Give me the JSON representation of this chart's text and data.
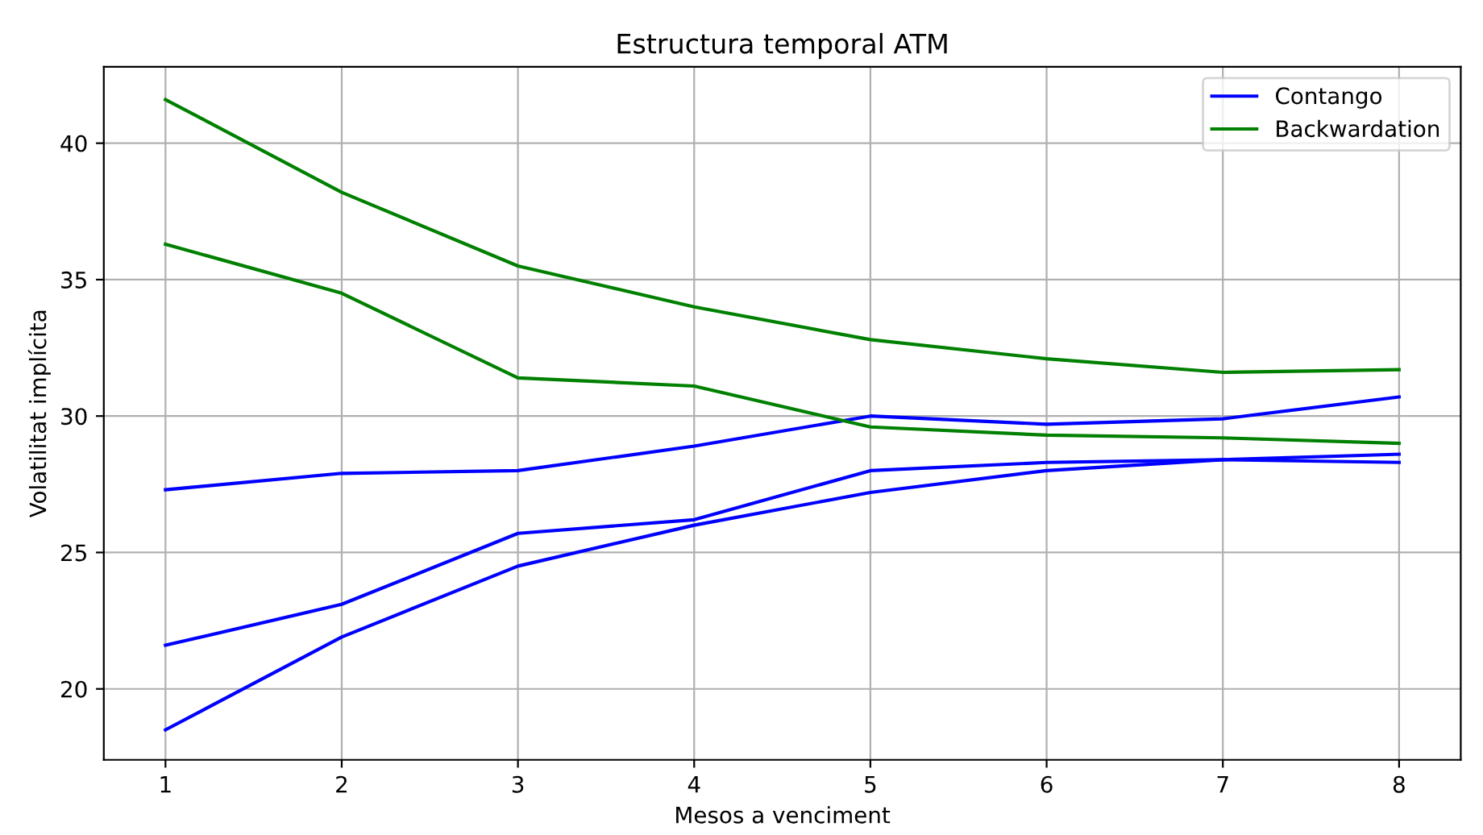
{
  "chart_data": {
    "type": "line",
    "title": "Estructura temporal ATM",
    "xlabel": "Mesos a venciment",
    "ylabel": "Volatilitat implícita",
    "x": [
      1,
      2,
      3,
      4,
      5,
      6,
      7,
      8
    ],
    "series": [
      {
        "name": "Contango",
        "color": "#0000ff",
        "values": [
          27.3,
          27.9,
          28.0,
          28.9,
          30.0,
          29.7,
          29.9,
          30.7
        ]
      },
      {
        "color": "#0000ff",
        "values": [
          21.6,
          23.1,
          25.7,
          26.2,
          28.0,
          28.3,
          28.4,
          28.3
        ]
      },
      {
        "color": "#0000ff",
        "values": [
          18.5,
          21.9,
          24.5,
          26.0,
          27.2,
          28.0,
          28.4,
          28.6
        ]
      },
      {
        "name": "Backwardation",
        "color": "#008000",
        "values": [
          41.6,
          38.2,
          35.5,
          34.0,
          32.8,
          32.1,
          31.6,
          31.7
        ]
      },
      {
        "color": "#008000",
        "values": [
          36.3,
          34.5,
          31.4,
          31.1,
          29.6,
          29.3,
          29.2,
          29.0
        ]
      }
    ],
    "xlim": [
      0.65,
      8.35
    ],
    "ylim": [
      17.4,
      42.8
    ],
    "xticks": [
      1,
      2,
      3,
      4,
      5,
      6,
      7,
      8
    ],
    "yticks": [
      20,
      25,
      30,
      35,
      40
    ],
    "grid": true,
    "legend": "top right",
    "marker": "none",
    "line_style": "solid"
  }
}
